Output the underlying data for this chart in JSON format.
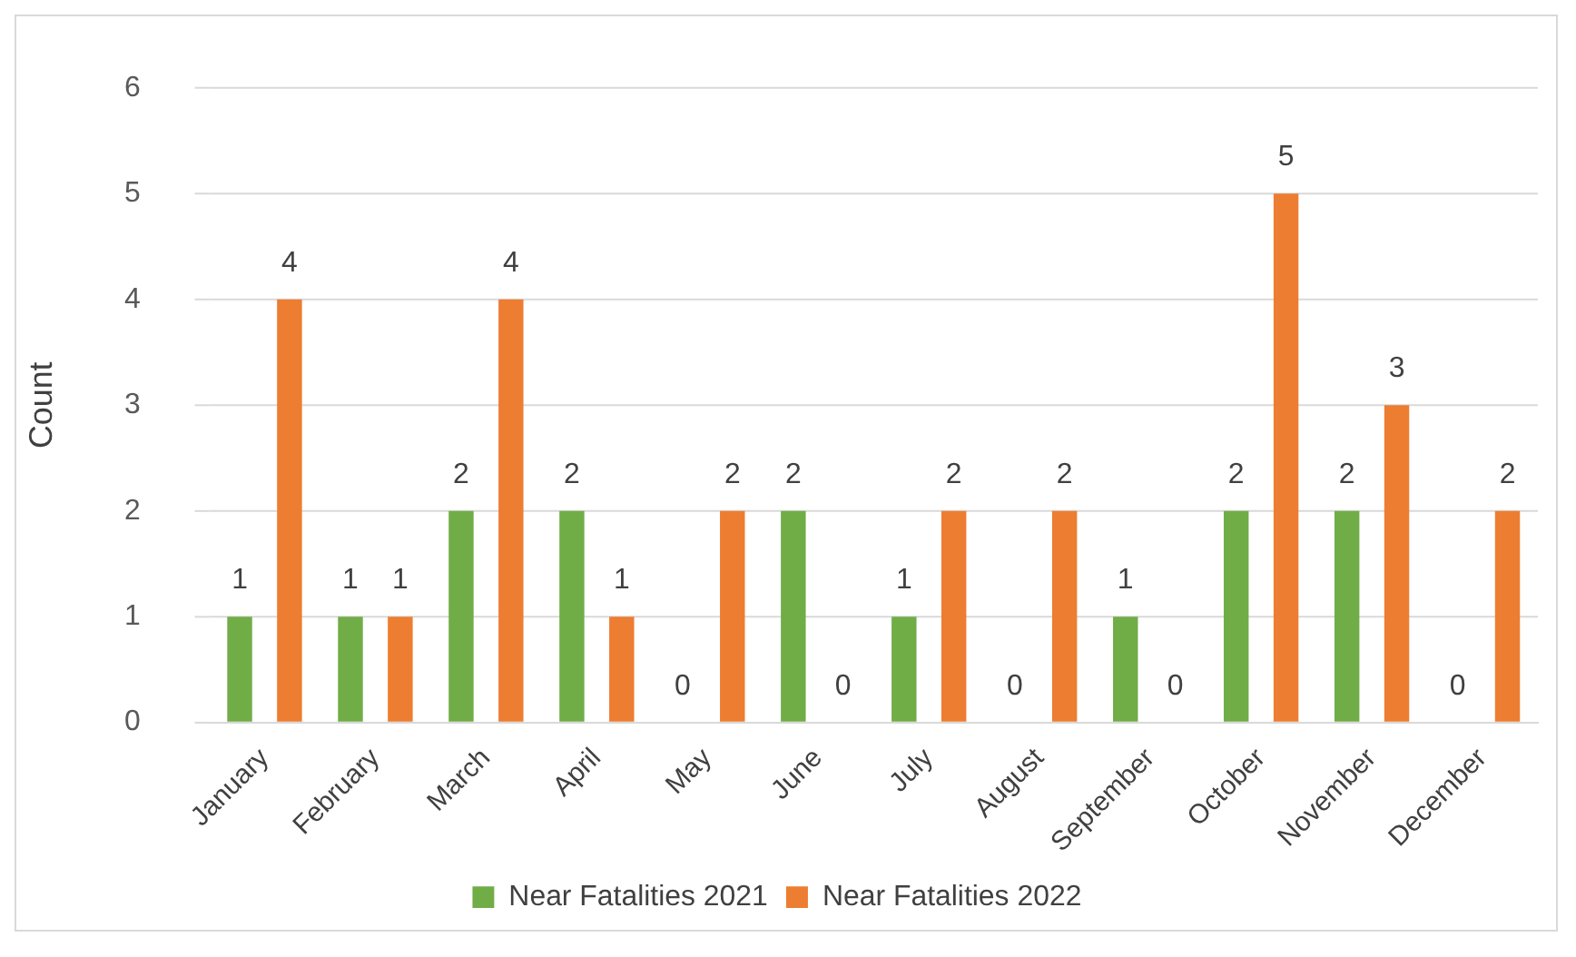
{
  "chart_data": {
    "type": "bar",
    "ylabel": "Count",
    "categories": [
      "January",
      "February",
      "March",
      "April",
      "May",
      "June",
      "July",
      "August",
      "September",
      "October",
      "November",
      "December"
    ],
    "series": [
      {
        "name": "Near Fatalities 2021",
        "color": "#70ad47",
        "values": [
          1,
          1,
          2,
          2,
          0,
          2,
          1,
          0,
          1,
          2,
          2,
          0
        ]
      },
      {
        "name": "Near Fatalities 2022",
        "color": "#ed7d31",
        "values": [
          4,
          1,
          4,
          1,
          2,
          0,
          2,
          2,
          0,
          5,
          3,
          2
        ]
      }
    ],
    "ylim": [
      0,
      6
    ],
    "yticks": [
      0,
      1,
      2,
      3,
      4,
      5,
      6
    ],
    "grid": "y",
    "legend": "bottom",
    "data_labels": true
  }
}
